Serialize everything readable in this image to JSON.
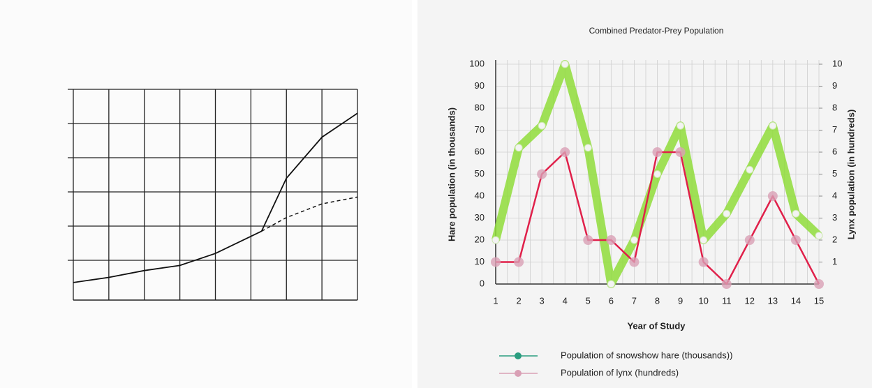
{
  "chart_data": [
    {
      "type": "line",
      "xlim": [
        0,
        8
      ],
      "ylim": [
        0,
        6
      ],
      "grid": true,
      "series": [
        {
          "color": "#111111",
          "dash": false,
          "x": [
            0,
            1,
            2,
            3,
            4,
            5,
            5.3,
            6,
            7,
            8
          ],
          "values": [
            0.35,
            0.5,
            0.7,
            0.85,
            1.2,
            1.7,
            1.85,
            3.4,
            4.6,
            5.3
          ]
        },
        {
          "color": "#111111",
          "dash": true,
          "x": [
            5.3,
            6,
            7,
            8
          ],
          "values": [
            1.85,
            2.25,
            2.65,
            2.85
          ]
        }
      ]
    },
    {
      "type": "line",
      "title": "Combined Predator-Prey Population",
      "x_label": "Year of Study",
      "y_label": "Hare population (in thousands)",
      "y2_label": "Lynx population (in hundreds)",
      "categories": [
        "1",
        "2",
        "3",
        "4",
        "5",
        "6",
        "7",
        "8",
        "9",
        "10",
        "11",
        "12",
        "13",
        "14",
        "15"
      ],
      "ylim": [
        0,
        100
      ],
      "yticks": [
        0,
        10,
        20,
        30,
        40,
        50,
        60,
        70,
        80,
        90,
        100
      ],
      "y2lim": [
        0,
        10
      ],
      "y2ticks": [
        1,
        2,
        3,
        4,
        5,
        6,
        7,
        8,
        9,
        10
      ],
      "grid": true,
      "series": [
        {
          "name": "Population of snowshow hare (thousands))",
          "color": "#8fdc3a",
          "marker_color": "#2a9d7f",
          "values": [
            20,
            62,
            72,
            100,
            62,
            0,
            20,
            50,
            72,
            20,
            32,
            52,
            72,
            32,
            22
          ]
        },
        {
          "name": "Population of lynx (hundreds)",
          "color": "#e0204a",
          "marker_color": "#d9a0b5",
          "axis": "y2",
          "values": [
            1,
            1,
            5,
            6,
            2,
            2,
            1,
            6,
            6,
            1,
            0,
            2,
            4,
            2,
            0
          ]
        }
      ]
    }
  ]
}
